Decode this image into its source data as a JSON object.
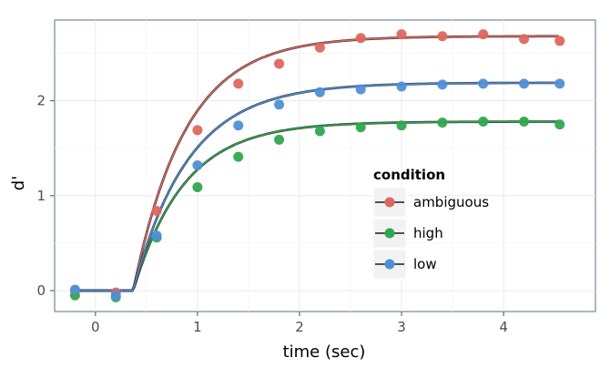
{
  "chart_data": {
    "type": "scatter",
    "xlabel": "time (sec)",
    "ylabel": "d'",
    "xlim": [
      -0.4,
      4.9
    ],
    "ylim": [
      -0.22,
      2.85
    ],
    "x_ticks": [
      0,
      1,
      2,
      3,
      4
    ],
    "y_ticks": [
      0,
      1,
      2
    ],
    "grid": true,
    "legend": {
      "title": "condition",
      "position": "right-inside",
      "entries": [
        "ambiguous",
        "high",
        "low"
      ]
    },
    "series": [
      {
        "name": "ambiguous",
        "color": "#e0665d",
        "points": {
          "x": [
            -0.2,
            0.2,
            0.6,
            1.0,
            1.4,
            1.8,
            2.2,
            2.6,
            3.0,
            3.4,
            3.8,
            4.2,
            4.55
          ],
          "y": [
            0.0,
            -0.02,
            0.84,
            1.69,
            2.18,
            2.39,
            2.56,
            2.66,
            2.7,
            2.68,
            2.7,
            2.65,
            2.63
          ]
        },
        "fit": {
          "x_start": 0.37,
          "asymptote": 2.68,
          "rate": 1.95
        }
      },
      {
        "name": "high",
        "color": "#2ea84f",
        "points": {
          "x": [
            -0.2,
            0.2,
            0.6,
            1.0,
            1.4,
            1.8,
            2.2,
            2.6,
            3.0,
            3.4,
            3.8,
            4.2,
            4.55
          ],
          "y": [
            -0.05,
            -0.07,
            0.56,
            1.09,
            1.41,
            1.59,
            1.68,
            1.72,
            1.74,
            1.77,
            1.78,
            1.78,
            1.75
          ]
        },
        "fit": {
          "x_start": 0.37,
          "asymptote": 1.78,
          "rate": 2.0
        }
      },
      {
        "name": "low",
        "color": "#4f8fd8",
        "points": {
          "x": [
            -0.2,
            0.2,
            0.6,
            1.0,
            1.4,
            1.8,
            2.2,
            2.6,
            3.0,
            3.4,
            3.8,
            4.2,
            4.55
          ],
          "y": [
            0.01,
            -0.05,
            0.58,
            1.32,
            1.74,
            1.96,
            2.09,
            2.12,
            2.15,
            2.17,
            2.18,
            2.18,
            2.18
          ]
        },
        "fit": {
          "x_start": 0.37,
          "asymptote": 2.19,
          "rate": 1.85
        }
      }
    ]
  }
}
